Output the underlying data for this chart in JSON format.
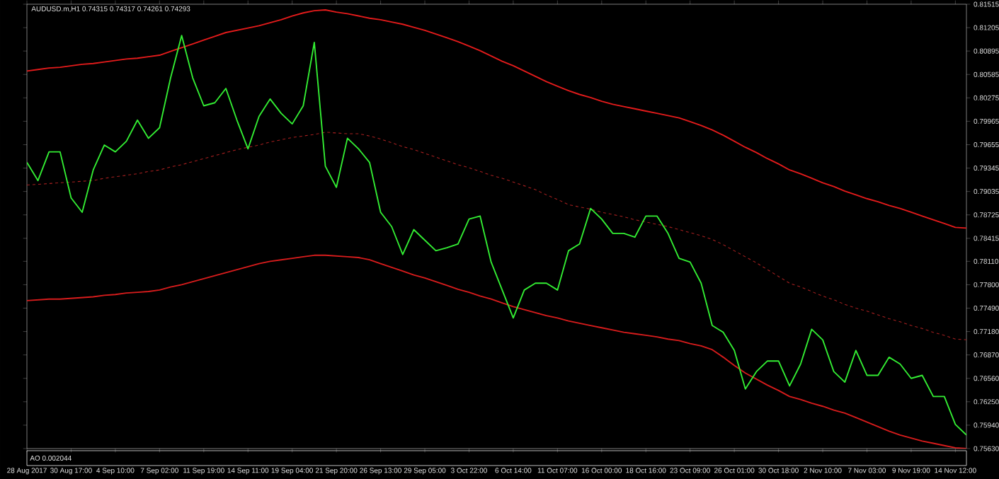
{
  "chart_data": {
    "type": "line",
    "title": "AUDUSD.m,H1  0.74315 0.74317 0.74261 0.74293",
    "annotations": [
      "AO 0.002044"
    ],
    "categories": [
      "28 Aug 2017",
      null,
      null,
      null,
      "30 Aug 17:00",
      null,
      null,
      null,
      "4 Sep 10:00",
      null,
      null,
      null,
      "7 Sep 02:00",
      null,
      null,
      null,
      "11 Sep 19:00",
      null,
      null,
      null,
      "14 Sep 11:00",
      null,
      null,
      null,
      "19 Sep 04:00",
      null,
      null,
      null,
      "21 Sep 20:00",
      null,
      null,
      null,
      "26 Sep 13:00",
      null,
      null,
      null,
      "29 Sep 05:00",
      null,
      null,
      null,
      "3 Oct 22:00",
      null,
      null,
      null,
      "6 Oct 14:00",
      null,
      null,
      null,
      "11 Oct 07:00",
      null,
      null,
      null,
      "16 Oct 00:00",
      null,
      null,
      null,
      "18 Oct 16:00",
      null,
      null,
      null,
      "23 Oct 09:00",
      null,
      null,
      null,
      "26 Oct 01:00",
      null,
      null,
      null,
      "30 Oct 18:00",
      null,
      null,
      null,
      "2 Nov 10:00",
      null,
      null,
      null,
      "7 Nov 03:00",
      null,
      null,
      null,
      "9 Nov 19:00",
      null,
      null,
      null,
      "14 Nov 12:00",
      null
    ],
    "ylim": [
      0.7563,
      0.81515
    ],
    "yticks": [
      0.81515,
      0.81205,
      0.80895,
      0.80585,
      0.80275,
      0.79965,
      0.79655,
      0.79345,
      0.79035,
      0.78725,
      0.78415,
      {
        "value": 0.7811,
        "label": "0.78110"
      },
      {
        "value": 0.778,
        "label": "0.77800"
      },
      {
        "value": 0.7749,
        "label": "0.77490"
      },
      {
        "value": 0.7718,
        "label": "0.77180"
      },
      {
        "value": 0.7687,
        "label": "0.76870"
      },
      {
        "value": 0.7656,
        "label": "0.76560"
      },
      {
        "value": 0.7625,
        "label": "0.76250"
      },
      {
        "value": 0.7594,
        "label": "0.75940"
      },
      {
        "value": 0.7563,
        "label": "0.75630"
      }
    ],
    "series": [
      {
        "color": "#e41b1b",
        "line_style": "solid",
        "values": [
          0.8063,
          0.8065,
          0.8067,
          0.8068,
          0.807,
          0.8072,
          0.8073,
          0.8075,
          0.8077,
          0.8079,
          0.808,
          0.8082,
          0.8084,
          0.8089,
          0.8094,
          0.8099,
          0.8104,
          0.8109,
          0.8114,
          0.8117,
          0.812,
          0.8123,
          0.8127,
          0.8131,
          0.8136,
          0.814,
          0.8143,
          0.8144,
          0.8141,
          0.8139,
          0.8136,
          0.8133,
          0.8131,
          0.8128,
          0.8125,
          0.8121,
          0.8117,
          0.8112,
          0.8107,
          0.8102,
          0.8096,
          0.809,
          0.8083,
          0.8076,
          0.807,
          0.8063,
          0.8056,
          0.8049,
          0.8043,
          0.8037,
          0.8032,
          0.8028,
          0.8023,
          0.8019,
          0.8016,
          0.8013,
          0.801,
          0.8007,
          0.8004,
          0.8001,
          0.7996,
          0.7991,
          0.7985,
          0.7978,
          0.797,
          0.7962,
          0.7955,
          0.7947,
          0.794,
          0.7932,
          0.7927,
          0.7921,
          0.7915,
          0.791,
          0.7904,
          0.7899,
          0.7894,
          0.789,
          0.7885,
          0.7881,
          0.7876,
          0.7871,
          0.7866,
          0.7861,
          0.7856,
          0.7855
        ]
      },
      {
        "color": "#a82020",
        "line_style": "dashed",
        "values": [
          0.7912,
          0.7913,
          0.7914,
          0.7915,
          0.7916,
          0.7917,
          0.7918,
          0.7921,
          0.7923,
          0.7925,
          0.7927,
          0.793,
          0.7932,
          0.7936,
          0.7939,
          0.7943,
          0.7947,
          0.7951,
          0.7955,
          0.7959,
          0.7962,
          0.7965,
          0.7969,
          0.7972,
          0.7975,
          0.7977,
          0.7979,
          0.7982,
          0.7981,
          0.798,
          0.798,
          0.7977,
          0.7973,
          0.7968,
          0.7963,
          0.7959,
          0.7954,
          0.7949,
          0.7944,
          0.7939,
          0.7935,
          0.793,
          0.7925,
          0.7921,
          0.7916,
          0.7911,
          0.7906,
          0.7899,
          0.7893,
          0.7886,
          0.7883,
          0.788,
          0.7876,
          0.7873,
          0.787,
          0.7866,
          0.7863,
          0.786,
          0.7857,
          0.7853,
          0.7849,
          0.7845,
          0.784,
          0.7833,
          0.7825,
          0.7817,
          0.7809,
          0.78,
          0.7791,
          0.7782,
          0.7777,
          0.7771,
          0.7765,
          0.776,
          0.7754,
          0.7749,
          0.7745,
          0.774,
          0.7735,
          0.7731,
          0.7726,
          0.7722,
          0.7717,
          0.7713,
          0.7708,
          0.7707
        ]
      },
      {
        "color": "#d81c1c",
        "line_style": "solid",
        "values": [
          0.7759,
          0.776,
          0.7761,
          0.7761,
          0.7762,
          0.7763,
          0.7764,
          0.7766,
          0.7767,
          0.7769,
          0.777,
          0.7771,
          0.7773,
          0.7777,
          0.778,
          0.7784,
          0.7788,
          0.7792,
          0.7796,
          0.78,
          0.7804,
          0.7808,
          0.7811,
          0.7813,
          0.7815,
          0.7817,
          0.7819,
          0.7819,
          0.7818,
          0.7817,
          0.7816,
          0.7813,
          0.7808,
          0.7803,
          0.7798,
          0.7793,
          0.7789,
          0.7784,
          0.7779,
          0.7774,
          0.777,
          0.7765,
          0.7761,
          0.7756,
          0.7751,
          0.7747,
          0.7743,
          0.7739,
          0.7736,
          0.7732,
          0.7729,
          0.7726,
          0.7723,
          0.772,
          0.7717,
          0.7715,
          0.7713,
          0.7711,
          0.7708,
          0.7706,
          0.7702,
          0.7699,
          0.7694,
          0.7684,
          0.7673,
          0.7663,
          0.7655,
          0.7647,
          0.764,
          0.7632,
          0.7628,
          0.7623,
          0.7619,
          0.7614,
          0.761,
          0.7604,
          0.7598,
          0.7592,
          0.7586,
          0.7581,
          0.7577,
          0.7573,
          0.757,
          0.7567,
          0.7564,
          0.7563
        ]
      },
      {
        "color": "#33ee33",
        "line_style": "solid",
        "values": [
          0.7942,
          0.7918,
          0.7956,
          0.7956,
          0.7895,
          0.7876,
          0.7932,
          0.7965,
          0.7956,
          0.797,
          0.7998,
          0.7974,
          0.7988,
          0.8054,
          0.811,
          0.8054,
          0.8017,
          0.8021,
          0.804,
          0.7998,
          0.796,
          0.8003,
          0.8026,
          0.8007,
          0.7993,
          0.8017,
          0.8101,
          0.7937,
          0.7909,
          0.7974,
          0.796,
          0.7942,
          0.7876,
          0.7857,
          0.782,
          0.7853,
          0.7839,
          0.7825,
          0.7829,
          0.7834,
          0.7867,
          0.7871,
          0.781,
          0.7773,
          0.7736,
          0.7773,
          0.7782,
          0.7782,
          0.7773,
          0.7825,
          0.7834,
          0.7881,
          0.7867,
          0.7848,
          0.7848,
          0.7843,
          0.7871,
          0.7871,
          0.7848,
          0.7815,
          0.781,
          0.7782,
          0.7726,
          0.7717,
          0.7693,
          0.7642,
          0.7665,
          0.7679,
          0.7679,
          0.7646,
          0.7675,
          0.7721,
          0.7707,
          0.7665,
          0.7651,
          0.7693,
          0.766,
          0.766,
          0.7684,
          0.7675,
          0.7656,
          0.766,
          0.7632,
          0.7632,
          0.7595,
          0.7581
        ]
      }
    ]
  }
}
